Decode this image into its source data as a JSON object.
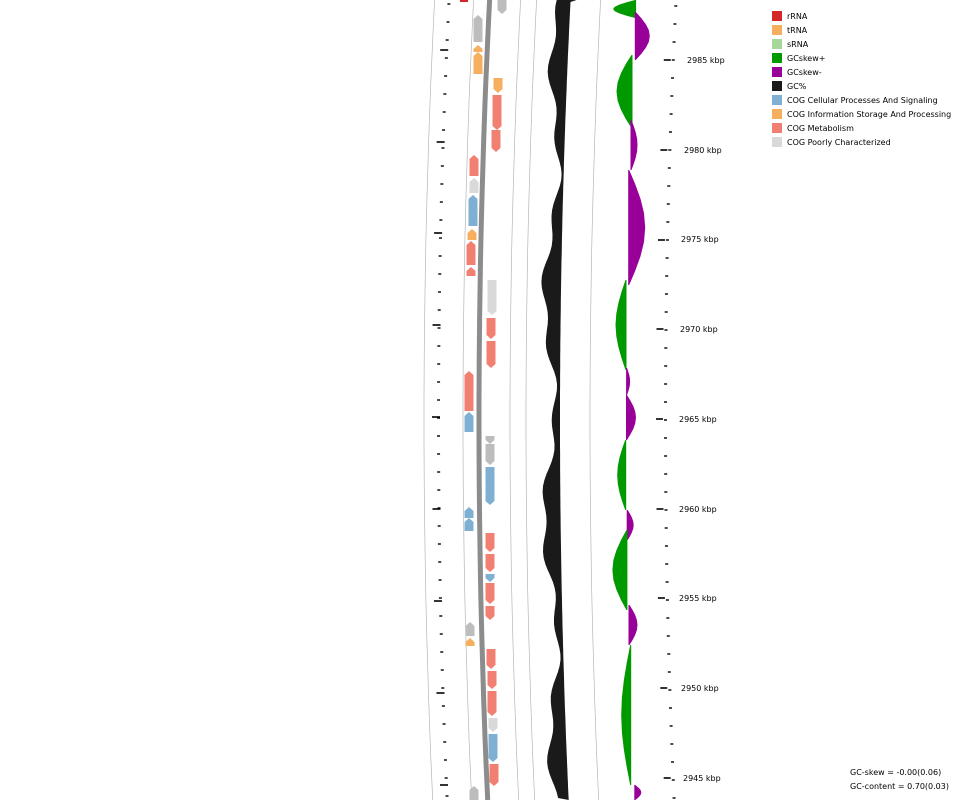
{
  "legend": [
    {
      "label": "rRNA",
      "color": "#d62728"
    },
    {
      "label": "tRNA",
      "color": "#f6ae5f"
    },
    {
      "label": "sRNA",
      "color": "#a6d89a"
    },
    {
      "label": "GCskew+",
      "color": "#009900"
    },
    {
      "label": "GCskew-",
      "color": "#990099"
    },
    {
      "label": "GC%",
      "color": "#1a1a1a"
    },
    {
      "label": "COG Cellular Processes And Signaling",
      "color": "#7fb0d4"
    },
    {
      "label": "COG Information Storage And Processing",
      "color": "#f6ae5f"
    },
    {
      "label": "COG Metabolism",
      "color": "#f28072"
    },
    {
      "label": "COG Poorly Characterized",
      "color": "#d9d9d9"
    }
  ],
  "axis": {
    "unit": "kbp",
    "labels": [
      "2985 kbp",
      "2980 kbp",
      "2975 kbp",
      "2970 kbp",
      "2965 kbp",
      "2960 kbp",
      "2955 kbp",
      "2950 kbp",
      "2945 kbp"
    ]
  },
  "stats": {
    "gc_skew": "GC-skew = -0.00(0.06)",
    "gc_content": "GC-content = 0.70(0.03)"
  },
  "colors": {
    "metabolism": "#f28072",
    "cellular": "#7fb0d4",
    "info": "#f6ae5f",
    "poor": "#d9d9d9",
    "unassigned": "#bdbdbd",
    "rrna": "#d62728",
    "gc": "#1a1a1a",
    "skew_pos": "#009900",
    "skew_neg": "#990099",
    "backbone": "#8c8c8c"
  }
}
